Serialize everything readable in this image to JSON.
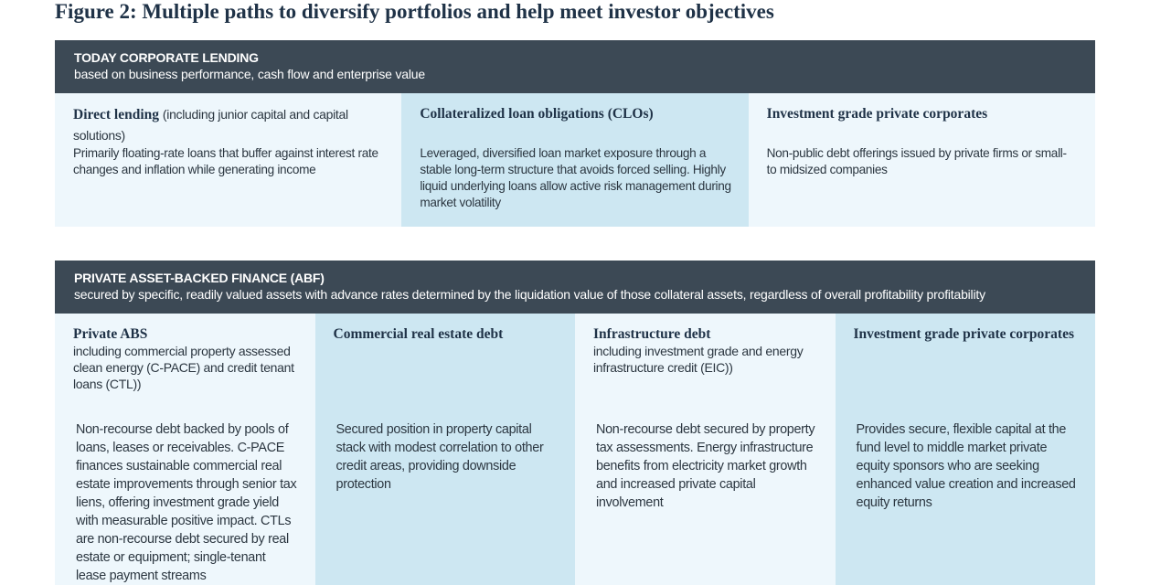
{
  "title": "Figure 2: Multiple paths to diversify portfolios and help meet investor objectives",
  "sections": [
    {
      "header": {
        "title": "TODAY CORPORATE LENDING",
        "subtitle": "based on business performance, cash flow and enterprise value"
      },
      "cards": [
        {
          "heading": "Direct lending",
          "note": "(including junior capital and capital solutions)",
          "body": "Primarily floating-rate loans that buffer against interest rate changes and inflation while generating income"
        },
        {
          "heading": "Collateralized loan obligations (CLOs)",
          "body": "Leveraged, diversified loan market exposure through a stable long-term structure that avoids forced selling. Highly liquid underlying loans allow active risk management during market volatility"
        },
        {
          "heading": "Investment grade private corporates",
          "body": "Non-public debt offerings issued by private firms or small- to midsized companies"
        }
      ]
    },
    {
      "header": {
        "title": "PRIVATE ASSET-BACKED FINANCE (ABF)",
        "subtitle": "secured by specific, readily valued assets with advance rates determined by the liquidation value of those collateral assets, regardless of overall profitability profitability"
      },
      "cards": [
        {
          "heading": "Private ABS",
          "note": "including commercial property assessed clean energy (C-PACE) and credit tenant loans (CTL))",
          "body": "Non-recourse debt backed by pools of loans, leases or receivables. C-PACE finances sustainable commercial real estate improvements through senior tax liens, offering investment grade yield with measurable positive impact. CTLs are non-recourse debt secured by real estate or equipment; single-tenant lease payment streams"
        },
        {
          "heading": "Commercial real estate debt",
          "body": "Secured position in property capital stack with modest correlation to other credit areas, providing downside protection"
        },
        {
          "heading": "Infrastructure debt",
          "note": "including investment grade and energy infrastructure credit (EIC))",
          "body": "Non-recourse debt secured by property tax assessments. Energy infrastructure benefits from electricity market growth and increased private capital involvement"
        },
        {
          "heading": "Investment grade private corporates",
          "body": "Provides secure, flexible capital at the fund level to middle market private equity sponsors who are seeking enhanced value creation and increased equity returns"
        }
      ]
    }
  ]
}
